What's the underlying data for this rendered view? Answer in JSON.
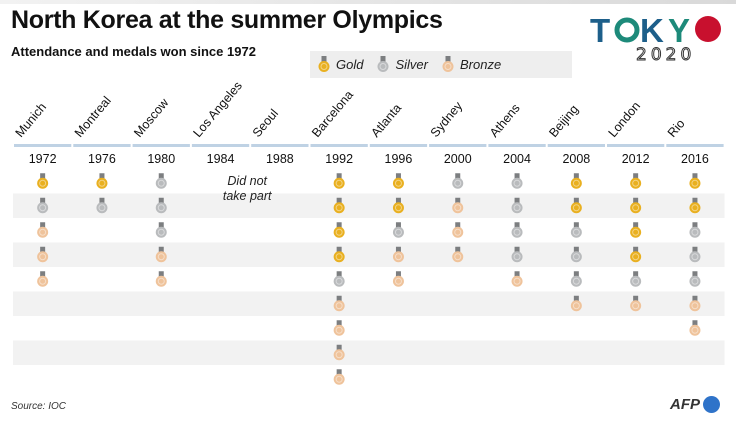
{
  "header": {
    "title": "North Korea at the summer Olympics",
    "subtitle": "Attendance and medals won since 1972"
  },
  "legend": {
    "gold": "Gold",
    "silver": "Silver",
    "bronze": "Bronze"
  },
  "logo": {
    "letters": [
      "T",
      "K",
      "Y"
    ],
    "year": "2020",
    "colors": {
      "T": "#1d5f8a",
      "K": "#1d5f8a",
      "Y": "#1d8a7a",
      "circle": "#c8102e"
    }
  },
  "colors": {
    "gold": "#e9b020",
    "silver": "#b9bbbd",
    "bronze": "#efc39b",
    "ribbon": "#7c7e80",
    "header_rule": "#bfd2e4",
    "row_band": "#f2f2f2"
  },
  "chart_data": {
    "type": "table",
    "title": "North Korea at the summer Olympics",
    "subtitle": "Attendance and medals won since 1972",
    "columns": [
      {
        "city": "Munich",
        "year": "1972",
        "medals": [
          "gold",
          "silver",
          "bronze",
          "bronze",
          "bronze"
        ]
      },
      {
        "city": "Montreal",
        "year": "1976",
        "medals": [
          "gold",
          "silver"
        ]
      },
      {
        "city": "Moscow",
        "year": "1980",
        "medals": [
          "silver",
          "silver",
          "silver",
          "bronze",
          "bronze"
        ]
      },
      {
        "city": "Los Angeles",
        "year": "1984",
        "medals": [],
        "note": "Did not take part"
      },
      {
        "city": "Seoul",
        "year": "1988",
        "medals": []
      },
      {
        "city": "Barcelona",
        "year": "1992",
        "medals": [
          "gold",
          "gold",
          "gold",
          "gold",
          "silver",
          "bronze",
          "bronze",
          "bronze",
          "bronze"
        ]
      },
      {
        "city": "Atlanta",
        "year": "1996",
        "medals": [
          "gold",
          "gold",
          "silver",
          "bronze",
          "bronze"
        ]
      },
      {
        "city": "Sydney",
        "year": "2000",
        "medals": [
          "silver",
          "bronze",
          "bronze",
          "bronze"
        ]
      },
      {
        "city": "Athens",
        "year": "2004",
        "medals": [
          "silver",
          "silver",
          "silver",
          "silver",
          "bronze"
        ]
      },
      {
        "city": "Beijing",
        "year": "2008",
        "medals": [
          "gold",
          "gold",
          "silver",
          "silver",
          "silver",
          "bronze"
        ]
      },
      {
        "city": "London",
        "year": "2012",
        "medals": [
          "gold",
          "gold",
          "gold",
          "gold",
          "silver",
          "bronze"
        ]
      },
      {
        "city": "Rio",
        "year": "2016",
        "medals": [
          "gold",
          "gold",
          "silver",
          "silver",
          "silver",
          "bronze",
          "bronze"
        ]
      }
    ]
  },
  "footer": {
    "source": "Source: IOC",
    "agency": "AFP"
  }
}
